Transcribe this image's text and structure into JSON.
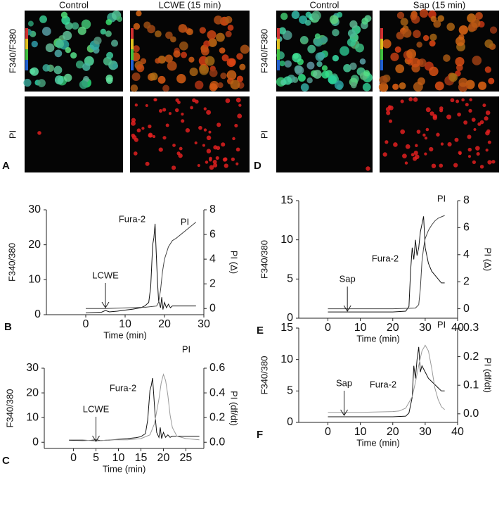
{
  "image_panels": [
    {
      "letter": "A",
      "columns": [
        "Control",
        "LCWE (15 min)"
      ],
      "rows": [
        "F340/F380",
        "PI"
      ]
    },
    {
      "letter": "D",
      "columns": [
        "Control",
        "Sap (15 min)"
      ],
      "rows": [
        "F340/F380",
        "PI"
      ]
    }
  ],
  "chart_data": [
    {
      "type": "line",
      "letter": "B",
      "x_label": "Time (min)",
      "y_label": "F340/380",
      "y2_label": "PI (Δ)",
      "xlim": [
        -10,
        30
      ],
      "xticks": [
        0,
        10,
        20,
        30
      ],
      "ylim": [
        0,
        30
      ],
      "yticks": [
        0,
        10,
        20,
        30
      ],
      "y2lim": [
        -0.5,
        8
      ],
      "y2ticks": [
        0,
        2,
        4,
        6,
        8
      ],
      "stimulus": {
        "label": "LCWE",
        "x": 5
      },
      "series": [
        {
          "name": "Fura-2",
          "color": "#111111",
          "x": [
            0,
            2,
            4,
            5,
            6,
            8,
            10,
            12,
            14,
            15,
            16,
            16.5,
            17,
            17.3,
            17.6,
            17.9,
            18.2,
            18.5,
            19,
            19.3,
            19.6,
            20,
            20.5,
            21,
            21.5,
            22,
            23,
            24,
            25,
            26,
            27,
            28
          ],
          "values": [
            0.5,
            0.6,
            0.7,
            1.2,
            0.8,
            1.0,
            1.3,
            1.6,
            2.0,
            2.5,
            3.5,
            8,
            20,
            22,
            26,
            18,
            10,
            4,
            2,
            5,
            1.5,
            3.5,
            2,
            3,
            2,
            2.5,
            2.5,
            2.5,
            2.5,
            2.5,
            2.5,
            2.5
          ]
        },
        {
          "name": "PI",
          "color": "#444444",
          "axis": "y2",
          "x": [
            0,
            5,
            10,
            15,
            18,
            18.5,
            19,
            19.5,
            20,
            21,
            22,
            23,
            28
          ],
          "values": [
            0,
            0,
            0.05,
            0.1,
            0.2,
            0.5,
            1.5,
            3,
            4,
            5,
            5.5,
            5.7,
            7
          ]
        }
      ]
    },
    {
      "type": "line",
      "letter": "C",
      "x_label": "Time (min)",
      "y_label": "F340/380",
      "y2_label": "PI (df/dt)",
      "xlim": [
        -6.5,
        29
      ],
      "xticks": [
        0,
        5,
        10,
        15,
        20,
        25
      ],
      "ylim": [
        -2.5,
        30
      ],
      "yticks": [
        0,
        10,
        20,
        30
      ],
      "y2lim": [
        -0.05,
        0.6
      ],
      "y2ticks": [
        {
          "value": 0,
          "label": "0.0"
        },
        {
          "value": 0.2,
          "label": "0.2"
        },
        {
          "value": 0.4,
          "label": "0.4"
        },
        {
          "value": 0.6,
          "label": "0.6"
        }
      ],
      "stimulus": {
        "label": "LCWE",
        "x": 5
      },
      "series": [
        {
          "name": "Fura-2",
          "color": "#111111",
          "x": [
            -1,
            2,
            4,
            5,
            6,
            8,
            10,
            12,
            14,
            15,
            16,
            16.5,
            17,
            17.3,
            17.6,
            17.9,
            18.2,
            18.5,
            19,
            19.3,
            19.6,
            20,
            20.5,
            21,
            21.5,
            22,
            23,
            24,
            25,
            26,
            27,
            28
          ],
          "values": [
            0.8,
            0.7,
            0.8,
            1.0,
            0.7,
            0.9,
            1.2,
            1.5,
            1.9,
            2.3,
            3.5,
            9,
            21,
            23,
            26,
            18,
            10,
            4,
            2,
            6,
            1.5,
            4,
            2,
            3,
            2,
            2.5,
            2.5,
            2.5,
            2.5,
            2.5,
            2.5,
            2.5
          ]
        },
        {
          "name": "PI",
          "color": "#999999",
          "axis": "y2",
          "x": [
            -1,
            2,
            5,
            8,
            12,
            15,
            17,
            18,
            19,
            19.5,
            20,
            20.5,
            21,
            21.5,
            22,
            23,
            25,
            28
          ],
          "values": [
            0.02,
            0.02,
            0.01,
            0.02,
            0.02,
            0.03,
            0.06,
            0.15,
            0.35,
            0.48,
            0.55,
            0.5,
            0.38,
            0.22,
            0.12,
            0.05,
            0.03,
            0.02
          ]
        }
      ]
    },
    {
      "type": "line",
      "letter": "E",
      "x_label": "Time (min)",
      "y_label": "F340/380",
      "y2_label": "PI (Δ)",
      "xlim": [
        -9,
        40
      ],
      "xticks": [
        0,
        10,
        20,
        30,
        40
      ],
      "ylim": [
        0,
        15
      ],
      "yticks": [
        0,
        5,
        10,
        15
      ],
      "y2lim": [
        -0.7,
        8
      ],
      "y2ticks": [
        0,
        2,
        4,
        6,
        8
      ],
      "stimulus": {
        "label": "Sap",
        "x": 6
      },
      "series": [
        {
          "name": "Fura-2",
          "color": "#111111",
          "x": [
            0,
            5,
            10,
            15,
            20,
            24,
            25,
            25.5,
            26,
            26.5,
            27,
            27.5,
            28,
            28.5,
            29,
            29.5,
            30,
            31,
            32,
            33,
            34,
            35,
            36
          ],
          "values": [
            0.8,
            0.8,
            0.8,
            0.8,
            0.8,
            0.9,
            1.5,
            6,
            9,
            7.5,
            10,
            8,
            9,
            11,
            12,
            13,
            9,
            7,
            6,
            5.5,
            5,
            4.5,
            4.5
          ]
        },
        {
          "name": "PI",
          "color": "#444444",
          "axis": "y2",
          "x": [
            0,
            10,
            20,
            27,
            28,
            28.5,
            29,
            29.5,
            30,
            31,
            32,
            33,
            34,
            35,
            36
          ],
          "values": [
            0,
            0,
            0,
            0.05,
            0.3,
            1.5,
            3.5,
            4.5,
            5.2,
            5.8,
            6.2,
            6.5,
            6.7,
            6.8,
            6.9
          ]
        }
      ]
    },
    {
      "type": "line",
      "letter": "F",
      "x_label": "Time (min)",
      "y_label": "F340/380",
      "y2_label": "PI (df/dt)",
      "xlim": [
        -9,
        40
      ],
      "xticks": [
        0,
        10,
        20,
        30,
        40
      ],
      "ylim": [
        0,
        15
      ],
      "yticks": [
        0,
        5,
        10,
        15
      ],
      "y2lim": [
        -0.03,
        0.3
      ],
      "y2ticks": [
        {
          "value": 0,
          "label": "0.0"
        },
        {
          "value": 0.1,
          "label": "0.1"
        },
        {
          "value": 0.2,
          "label": "0.2"
        },
        {
          "value": 0.3,
          "label": "0.3"
        }
      ],
      "stimulus": {
        "label": "Sap",
        "x": 5
      },
      "series": [
        {
          "name": "Fura-2",
          "color": "#111111",
          "x": [
            0,
            10,
            20,
            24,
            25,
            26,
            26.5,
            27,
            27.5,
            28,
            28.5,
            29,
            30,
            31,
            32,
            33,
            34,
            35,
            36
          ],
          "values": [
            0.9,
            0.9,
            0.9,
            1,
            1.5,
            4,
            9,
            7,
            10,
            12,
            8,
            9,
            8,
            7,
            6.5,
            6,
            5.5,
            5,
            5
          ]
        },
        {
          "name": "PI",
          "color": "#999999",
          "axis": "y2",
          "x": [
            0,
            10,
            20,
            22,
            24,
            26,
            27,
            28,
            29,
            30,
            31,
            32,
            33,
            34,
            35,
            36
          ],
          "values": [
            0.005,
            0.005,
            0.008,
            0.01,
            0.02,
            0.06,
            0.11,
            0.17,
            0.22,
            0.24,
            0.22,
            0.16,
            0.09,
            0.05,
            0.025,
            0.015
          ]
        }
      ]
    }
  ]
}
